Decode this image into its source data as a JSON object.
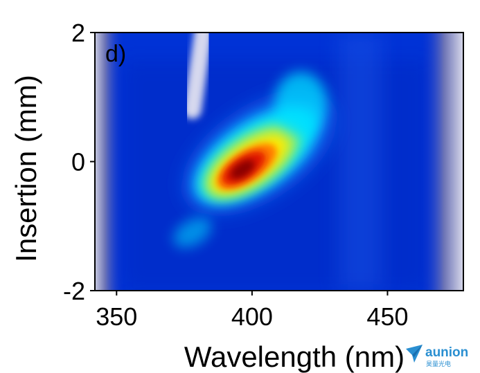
{
  "chart_data": {
    "type": "heatmap",
    "panel_label": "d)",
    "xlabel": "Wavelength (nm)",
    "ylabel": "Insertion (mm)",
    "xlim": [
      342,
      478
    ],
    "ylim": [
      -2,
      2
    ],
    "x_ticks": [
      350,
      400,
      450
    ],
    "y_ticks": [
      -2,
      0,
      2
    ],
    "colormap": {
      "low": "#9ea2c9",
      "mid_low": "#0033d6",
      "mid": "#00e0ff",
      "mid_high": "#ffea00",
      "high": "#8a0000"
    },
    "features": [
      {
        "kind": "main_peak",
        "wavelength_nm": 397,
        "insertion_mm": -0.1,
        "intensity": 1.0
      },
      {
        "kind": "spectral_tilt",
        "from": [
          375,
          -0.8
        ],
        "to": [
          425,
          0.9
        ]
      },
      {
        "kind": "low_intensity_streak",
        "from": [
          382,
          2.0
        ],
        "to": [
          378,
          0.8
        ]
      }
    ]
  },
  "watermark": {
    "text": "aunion",
    "subtext": "昊量光电"
  }
}
